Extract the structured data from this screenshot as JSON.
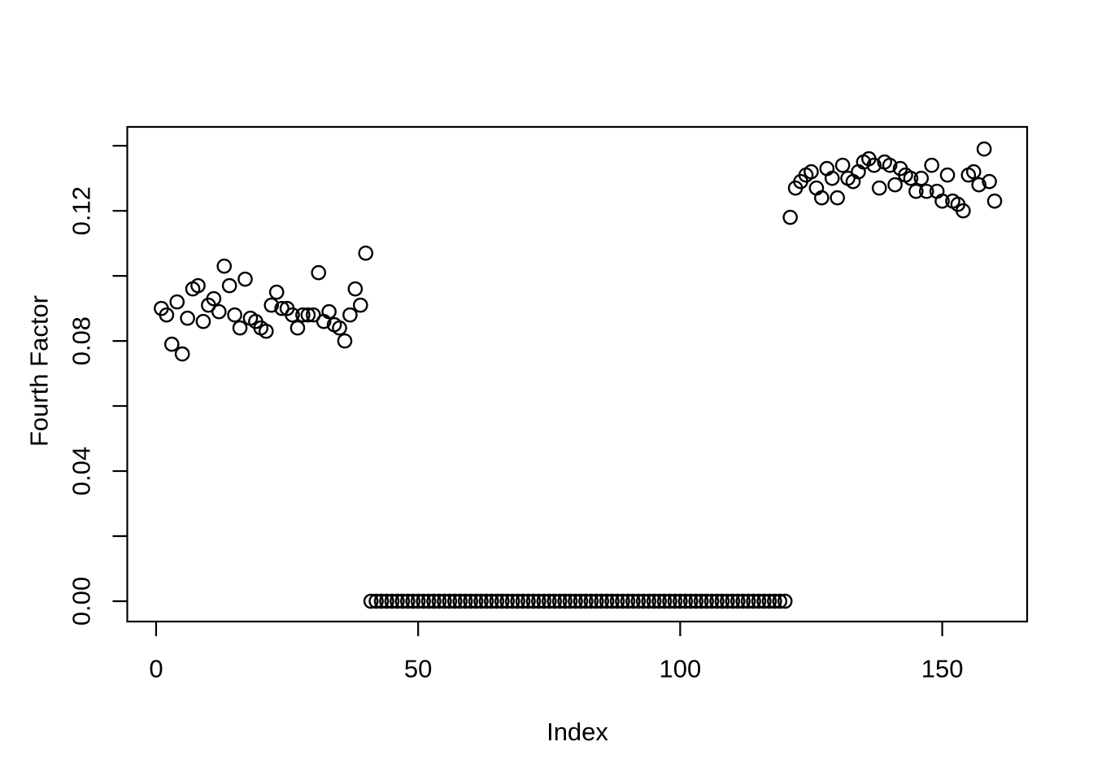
{
  "figure": {
    "background": "#ffffff",
    "foreground": "#000000",
    "marker_style": "open-circle"
  },
  "chart_data": {
    "type": "scatter",
    "title": "",
    "xlabel": "Index",
    "ylabel": "Fourth Factor",
    "xlim": [
      -5.5,
      166.2
    ],
    "ylim": [
      -0.00625,
      0.1458
    ],
    "x_ticks": [
      0,
      50,
      100,
      150
    ],
    "x_tick_labels": [
      "0",
      "50",
      "100",
      "150"
    ],
    "y_ticks": [
      0,
      0.02,
      0.04,
      0.06,
      0.08,
      0.1,
      0.12,
      0.14
    ],
    "y_tick_labels": [
      "0.00",
      "",
      "0.04",
      "",
      "0.08",
      "",
      "0.12",
      ""
    ],
    "grid": false,
    "legend": false,
    "x": [
      1,
      2,
      3,
      4,
      5,
      6,
      7,
      8,
      9,
      10,
      11,
      12,
      13,
      14,
      15,
      16,
      17,
      18,
      19,
      20,
      21,
      22,
      23,
      24,
      25,
      26,
      27,
      28,
      29,
      30,
      31,
      32,
      33,
      34,
      35,
      36,
      37,
      38,
      39,
      40,
      41,
      42,
      43,
      44,
      45,
      46,
      47,
      48,
      49,
      50,
      51,
      52,
      53,
      54,
      55,
      56,
      57,
      58,
      59,
      60,
      61,
      62,
      63,
      64,
      65,
      66,
      67,
      68,
      69,
      70,
      71,
      72,
      73,
      74,
      75,
      76,
      77,
      78,
      79,
      80,
      81,
      82,
      83,
      84,
      85,
      86,
      87,
      88,
      89,
      90,
      91,
      92,
      93,
      94,
      95,
      96,
      97,
      98,
      99,
      100,
      101,
      102,
      103,
      104,
      105,
      106,
      107,
      108,
      109,
      110,
      111,
      112,
      113,
      114,
      115,
      116,
      117,
      118,
      119,
      120,
      121,
      122,
      123,
      124,
      125,
      126,
      127,
      128,
      129,
      130,
      131,
      132,
      133,
      134,
      135,
      136,
      137,
      138,
      139,
      140,
      141,
      142,
      143,
      144,
      145,
      146,
      147,
      148,
      149,
      150,
      151,
      152,
      153,
      154,
      155,
      156,
      157,
      158,
      159,
      160
    ],
    "y": [
      0.09,
      0.088,
      0.079,
      0.092,
      0.076,
      0.087,
      0.096,
      0.097,
      0.086,
      0.091,
      0.093,
      0.089,
      0.103,
      0.097,
      0.088,
      0.084,
      0.099,
      0.087,
      0.086,
      0.084,
      0.083,
      0.091,
      0.095,
      0.09,
      0.09,
      0.088,
      0.084,
      0.088,
      0.088,
      0.088,
      0.101,
      0.086,
      0.089,
      0.085,
      0.084,
      0.08,
      0.088,
      0.096,
      0.091,
      0.107,
      0,
      0,
      0,
      0,
      0,
      0,
      0,
      0,
      0,
      0,
      0,
      0,
      0,
      0,
      0,
      0,
      0,
      0,
      0,
      0,
      0,
      0,
      0,
      0,
      0,
      0,
      0,
      0,
      0,
      0,
      0,
      0,
      0,
      0,
      0,
      0,
      0,
      0,
      0,
      0,
      0,
      0,
      0,
      0,
      0,
      0,
      0,
      0,
      0,
      0,
      0,
      0,
      0,
      0,
      0,
      0,
      0,
      0,
      0,
      0,
      0,
      0,
      0,
      0,
      0,
      0,
      0,
      0,
      0,
      0,
      0,
      0,
      0,
      0,
      0,
      0,
      0,
      0,
      0,
      0,
      0.118,
      0.127,
      0.129,
      0.131,
      0.132,
      0.127,
      0.124,
      0.133,
      0.13,
      0.124,
      0.134,
      0.13,
      0.129,
      0.132,
      0.135,
      0.136,
      0.134,
      0.127,
      0.135,
      0.134,
      0.128,
      0.133,
      0.131,
      0.13,
      0.126,
      0.13,
      0.126,
      0.134,
      0.126,
      0.123,
      0.131,
      0.123,
      0.122,
      0.12,
      0.131,
      0.132,
      0.128,
      0.139,
      0.129,
      0.123
    ]
  }
}
